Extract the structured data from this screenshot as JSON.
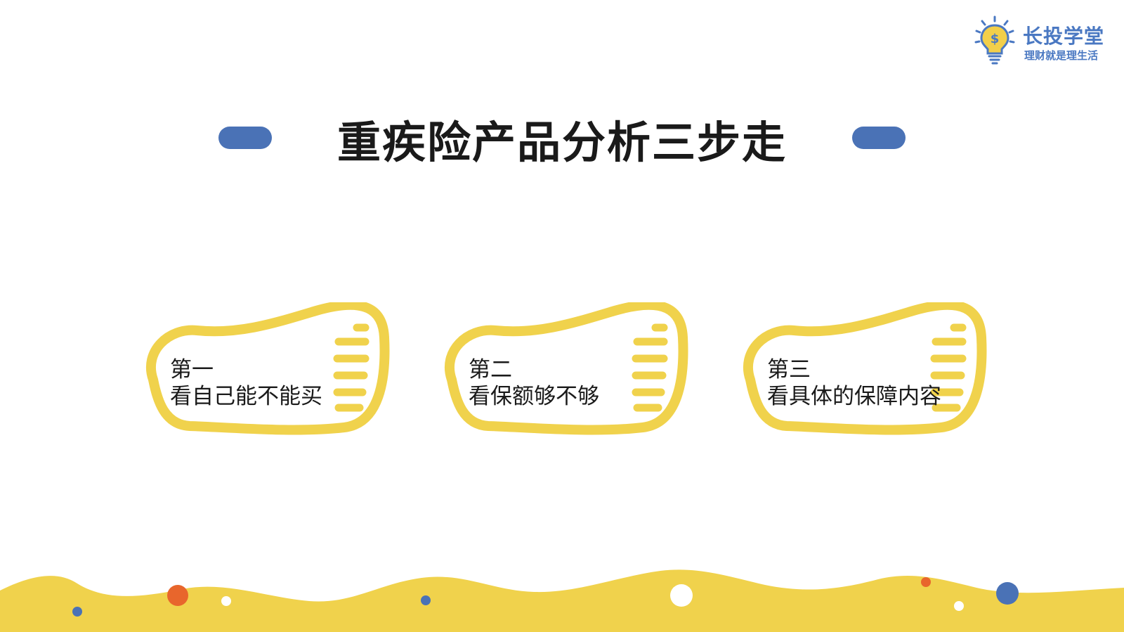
{
  "logo": {
    "name": "长投学堂",
    "slogan": "理财就是理生活",
    "brand_color": "#4a78c2",
    "bulb_color": "#f2cf4a",
    "icon": "lightbulb-dollar-icon"
  },
  "title": "重疾险产品分析三步走",
  "accent_color": "#4a72b6",
  "frame_color": "#f0d24c",
  "steps": [
    {
      "label": "第一",
      "desc": "看自己能不能买"
    },
    {
      "label": "第二",
      "desc": "看保额够不够"
    },
    {
      "label": "第三",
      "desc": "看具体的保障内容"
    }
  ],
  "decor": {
    "wave_color": "#f0d24c",
    "dot_colors": [
      "#e8662c",
      "#4a72b6",
      "#ffffff"
    ]
  }
}
